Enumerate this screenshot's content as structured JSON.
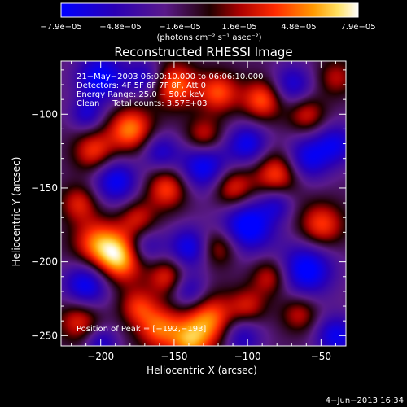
{
  "chart_data": {
    "type": "heatmap",
    "title": "Reconstructed RHESSI Image",
    "xlabel": "Heliocentric X (arcsec)",
    "ylabel": "Heliocentric Y (arcsec)",
    "xlim": [
      -227,
      -33
    ],
    "ylim": [
      -257,
      -64
    ],
    "x_ticks": [
      -200,
      -150,
      -100,
      -50
    ],
    "y_ticks": [
      -100,
      -150,
      -200,
      -250
    ],
    "x_tick_labels": [
      "−200",
      "−150",
      "−100",
      "−50"
    ],
    "y_tick_labels": [
      "−100",
      "−150",
      "−200",
      "−250"
    ],
    "colorbar": {
      "range": [
        -7.9e-05,
        7.9e-05
      ],
      "tick_labels": [
        "−7.9e−05",
        "−4.8e−05",
        "−1.6e−05",
        "1.6e−05",
        "4.8e−05",
        "7.9e−05"
      ],
      "unit_label": "(photons cm⁻² s⁻¹ asec⁻²)"
    },
    "annotations": [
      "21−May−2003 06:00:10.000 to 06:06:10.000",
      "Detectors: 4F 5F 6F 7F 8F, Att 0",
      "Energy Range: 25.0 − 50.0 keV",
      "Clean     Total counts: 3.57E+03"
    ],
    "peak_label": "Position of Peak = [−192,−193]",
    "peak": [
      -192,
      -193
    ],
    "footer_date": "4−Jun−2013 16:34",
    "blobs": [
      {
        "x": -187,
        "y": -197,
        "v": 1.0,
        "s": 12
      },
      {
        "x": -203,
        "y": -187,
        "v": 0.7,
        "s": 12
      },
      {
        "x": -127,
        "y": -240,
        "v": 0.9,
        "s": 13
      },
      {
        "x": -160,
        "y": -245,
        "v": 0.75,
        "s": 11
      },
      {
        "x": -180,
        "y": -110,
        "v": 0.85,
        "s": 11
      },
      {
        "x": -205,
        "y": -125,
        "v": 0.65,
        "s": 10
      },
      {
        "x": -150,
        "y": -80,
        "v": 0.8,
        "s": 11
      },
      {
        "x": -120,
        "y": -85,
        "v": 0.7,
        "s": 10
      },
      {
        "x": -90,
        "y": -90,
        "v": 0.75,
        "s": 10
      },
      {
        "x": -155,
        "y": -210,
        "v": 0.6,
        "s": 9
      },
      {
        "x": -155,
        "y": -150,
        "v": 0.7,
        "s": 10
      },
      {
        "x": -130,
        "y": -115,
        "v": 0.6,
        "s": 9
      },
      {
        "x": -110,
        "y": -150,
        "v": 0.7,
        "s": 10
      },
      {
        "x": -80,
        "y": -140,
        "v": 0.75,
        "s": 11
      },
      {
        "x": -60,
        "y": -100,
        "v": 0.55,
        "s": 9
      },
      {
        "x": -50,
        "y": -175,
        "v": 0.7,
        "s": 11
      },
      {
        "x": -85,
        "y": -210,
        "v": 0.55,
        "s": 9
      },
      {
        "x": -65,
        "y": -235,
        "v": 0.5,
        "s": 9
      },
      {
        "x": -120,
        "y": -190,
        "v": 0.55,
        "s": 9
      },
      {
        "x": -215,
        "y": -240,
        "v": 0.6,
        "s": 10
      },
      {
        "x": -215,
        "y": -160,
        "v": 0.55,
        "s": 9
      },
      {
        "x": -175,
        "y": -170,
        "v": 0.5,
        "s": 9
      },
      {
        "x": -40,
        "y": -75,
        "v": 0.45,
        "s": 9
      },
      {
        "x": -100,
        "y": -230,
        "v": 0.5,
        "s": 9
      },
      {
        "x": -175,
        "y": -230,
        "v": 0.55,
        "s": 9
      },
      {
        "x": -140,
        "y": -255,
        "v": 0.6,
        "s": 9
      },
      {
        "x": -200,
        "y": -75,
        "v": -0.8,
        "s": 12
      },
      {
        "x": -130,
        "y": -135,
        "v": -0.8,
        "s": 12
      },
      {
        "x": -190,
        "y": -145,
        "v": -0.75,
        "s": 11
      },
      {
        "x": -170,
        "y": -190,
        "v": -0.55,
        "s": 9
      },
      {
        "x": -100,
        "y": -175,
        "v": -0.9,
        "s": 13
      },
      {
        "x": -100,
        "y": -120,
        "v": -0.7,
        "s": 10
      },
      {
        "x": -60,
        "y": -130,
        "v": -0.7,
        "s": 11
      },
      {
        "x": -40,
        "y": -120,
        "v": -0.6,
        "s": 10
      },
      {
        "x": -60,
        "y": -205,
        "v": -0.85,
        "s": 13
      },
      {
        "x": -140,
        "y": -190,
        "v": -0.7,
        "s": 10
      },
      {
        "x": -140,
        "y": -220,
        "v": -0.6,
        "s": 9
      },
      {
        "x": -210,
        "y": -215,
        "v": -0.8,
        "s": 11
      },
      {
        "x": -170,
        "y": -75,
        "v": -0.55,
        "s": 9
      },
      {
        "x": -70,
        "y": -80,
        "v": -0.6,
        "s": 10
      },
      {
        "x": -105,
        "y": -250,
        "v": -0.6,
        "s": 10
      },
      {
        "x": -40,
        "y": -250,
        "v": -0.7,
        "s": 10
      },
      {
        "x": -160,
        "y": -125,
        "v": -0.55,
        "s": 9
      },
      {
        "x": -210,
        "y": -100,
        "v": -0.5,
        "s": 8
      },
      {
        "x": -80,
        "y": -160,
        "v": -0.45,
        "s": 8
      },
      {
        "x": -200,
        "y": -255,
        "v": -0.55,
        "s": 8
      }
    ]
  }
}
